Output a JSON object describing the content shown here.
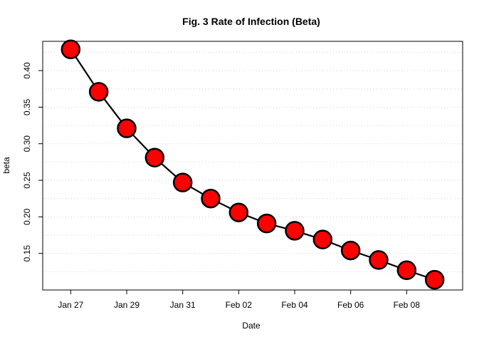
{
  "chart_data": {
    "type": "line",
    "title": "Fig. 3 Rate of Infection (Beta)",
    "xlabel": "Date",
    "ylabel": "beta",
    "x": [
      "2020-01-27",
      "2020-01-28",
      "2020-01-29",
      "2020-01-30",
      "2020-01-31",
      "2020-02-01",
      "2020-02-02",
      "2020-02-03",
      "2020-02-04",
      "2020-02-05",
      "2020-02-06",
      "2020-02-07",
      "2020-02-08",
      "2020-02-09"
    ],
    "series": [
      {
        "values": [
          0.429,
          0.371,
          0.321,
          0.281,
          0.247,
          0.225,
          0.206,
          0.191,
          0.181,
          0.169,
          0.154,
          0.141,
          0.127,
          0.114
        ]
      }
    ],
    "x_ticks": [
      {
        "date": "2020-01-27",
        "label": "Jan 27"
      },
      {
        "date": "2020-01-29",
        "label": "Jan 29"
      },
      {
        "date": "2020-01-31",
        "label": "Jan 31"
      },
      {
        "date": "2020-02-02",
        "label": "Feb 02"
      },
      {
        "date": "2020-02-04",
        "label": "Feb 04"
      },
      {
        "date": "2020-02-06",
        "label": "Feb 06"
      },
      {
        "date": "2020-02-08",
        "label": "Feb 08"
      }
    ],
    "y_ticks": [
      0.15,
      0.2,
      0.25,
      0.3,
      0.35,
      0.4
    ],
    "y_tick_labels": [
      "0.15",
      "0.20",
      "0.25",
      "0.30",
      "0.35",
      "0.40"
    ],
    "xlim": [
      "2020-01-26",
      "2020-02-10"
    ],
    "ylim": [
      0.1,
      0.44
    ],
    "grid": true,
    "grid_y": [
      0.125,
      0.15,
      0.175,
      0.2,
      0.225,
      0.25,
      0.275,
      0.3,
      0.325,
      0.35,
      0.375,
      0.4,
      0.425
    ],
    "colors": {
      "point_fill": "#ff0000",
      "point_stroke": "#000000",
      "line": "#000000",
      "grid": "#d3d3d3"
    }
  }
}
